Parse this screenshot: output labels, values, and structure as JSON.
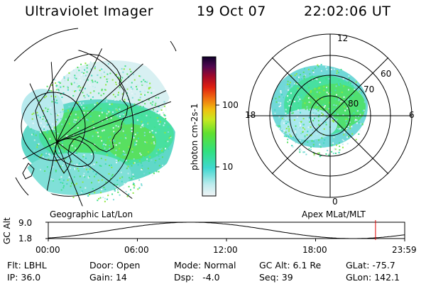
{
  "header": {
    "title": "Ultraviolet Imager",
    "date": "19 Oct 07",
    "time": "22:02:06 UT"
  },
  "panels": {
    "geo_label": "Geographic Lat/Lon",
    "apex_label": "Apex MLat/MLT"
  },
  "colorbar": {
    "unit": "photon cm-2s-1",
    "ticks": [
      "100",
      "10"
    ]
  },
  "polar_labels": {
    "mlt": [
      "12",
      "18",
      "6",
      "0"
    ],
    "mlat": [
      "60",
      "70",
      "80"
    ]
  },
  "altitude_plot": {
    "ylabel": "GC Alt",
    "yticks": [
      "9.0",
      "1.8"
    ],
    "xticks": [
      "00:00",
      "06:00",
      "12:00",
      "18:00",
      "23:59"
    ],
    "marker_time": "22:02:06"
  },
  "info": {
    "row1": [
      {
        "label": "Flt:",
        "value": "LBHL"
      },
      {
        "label": "Door:",
        "value": "Open"
      },
      {
        "label": "Mode:",
        "value": "Normal"
      },
      {
        "label": "GC Alt:",
        "value": "6.1 Re"
      },
      {
        "label": "GLat:",
        "value": "-75.7"
      }
    ],
    "row2": [
      {
        "label": "IP:",
        "value": "36.0"
      },
      {
        "label": "Gain:",
        "value": "14"
      },
      {
        "label": "Dsp:",
        "value": "-4.0"
      },
      {
        "label": "Seq:",
        "value": "39"
      },
      {
        "label": "GLon:",
        "value": "142.1"
      }
    ]
  },
  "colors": {
    "marker": "#e00000",
    "emission_low": "#c8eef0",
    "emission_mid": "#40d8b8",
    "emission_high": "#50e040"
  }
}
